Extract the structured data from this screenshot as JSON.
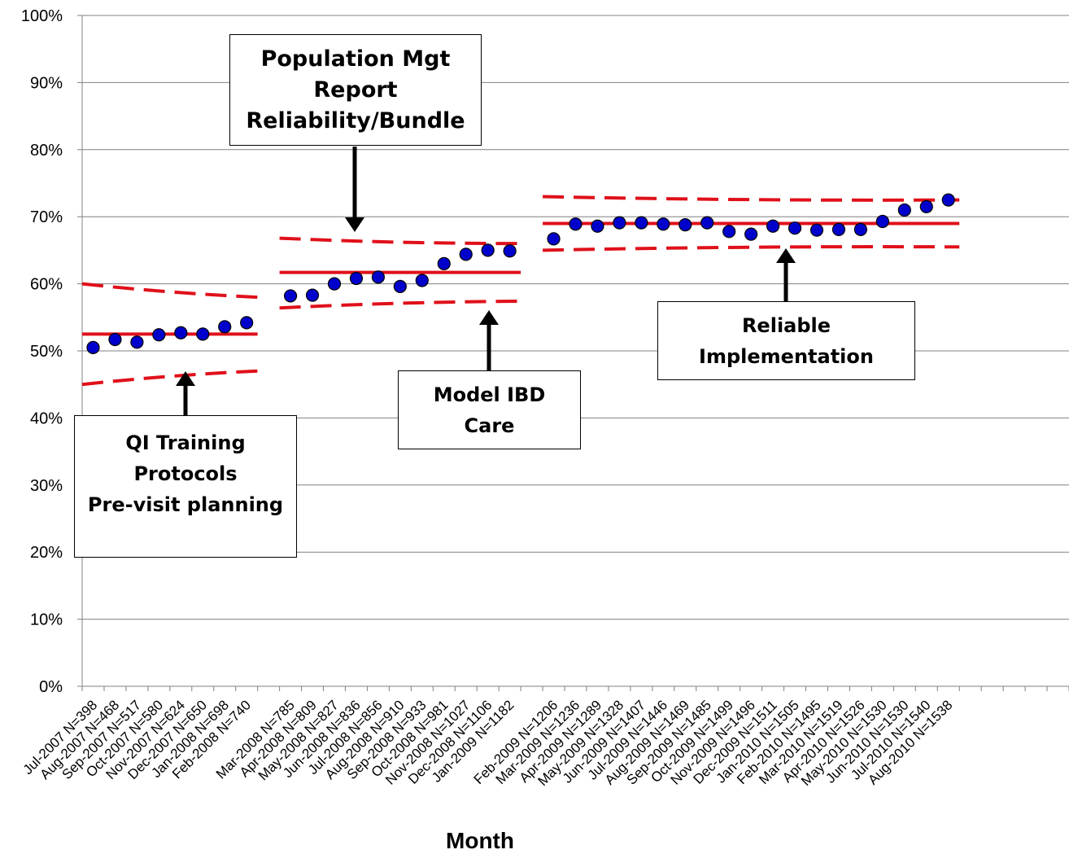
{
  "chart_data": {
    "type": "scatter",
    "xlabel": "Month",
    "ylabel": "",
    "ylim": [
      0,
      100
    ],
    "y_ticks": [
      "0%",
      "10%",
      "20%",
      "30%",
      "40%",
      "50%",
      "60%",
      "70%",
      "80%",
      "90%",
      "100%"
    ],
    "grid": "horizontal",
    "categories": [
      "Jul-2007 N=398",
      "Aug-2007 N=468",
      "Sep-2007 N=517",
      "Oct-2007 N=580",
      "Nov-2007 N=624",
      "Dec-2007 N=650",
      "Jan-2008 N=698",
      "Feb-2008 N=740",
      "",
      "Mar-2008 N=785",
      "Apr-2008 N=809",
      "May-2008 N=827",
      "Jun-2008 N=836",
      "Jul-2008 N=856",
      "Aug-2008 N=910",
      "Sep-2008 N=933",
      "Oct-2008 N=981",
      "Nov-2008 N=1027",
      "Dec-2008 N=1106",
      "Jan-2009 N=1182",
      "",
      "Feb-2009 N=1206",
      "Mar-2009 N=1236",
      "Apr-2009 N=1289",
      "May-2009 N=1328",
      "Jun-2009 N=1407",
      "Jul-2009 N=1446",
      "Aug-2009 N=1469",
      "Sep-2009 N=1485",
      "Oct-2009 N=1499",
      "Nov-2009 N=1496",
      "Dec-2009 N=1511",
      "Jan-2010 N=1505",
      "Feb-2010 N=1495",
      "Mar-2010 N=1519",
      "Apr-2010 N=1526",
      "May-2010 N=1530",
      "Jun-2010 N=1530",
      "Jul-2010 N=1540",
      "Aug-2010 N=1538",
      "",
      "",
      "",
      "",
      ""
    ],
    "series": [
      {
        "values": [
          50.5,
          51.7,
          51.3,
          52.4,
          52.7,
          52.5,
          53.6,
          54.2,
          null,
          58.2,
          58.3,
          60.0,
          60.8,
          61.0,
          59.6,
          60.5,
          63.0,
          64.4,
          65.0,
          64.9,
          null,
          66.7,
          68.9,
          68.6,
          69.1,
          69.1,
          68.9,
          68.8,
          69.1,
          67.8,
          67.4,
          68.6,
          68.3,
          68.0,
          68.1,
          68.1,
          69.3,
          71.0,
          71.5,
          72.5,
          null,
          null,
          null,
          null,
          null
        ],
        "color": "#0000cc"
      }
    ],
    "control_limits": [
      {
        "start": 0,
        "end": 7,
        "center": 52.5,
        "upper": [
          60.0,
          58.0
        ],
        "lower": [
          45.0,
          47.0
        ]
      },
      {
        "start": 9,
        "end": 19,
        "center": 61.7,
        "upper": [
          66.8,
          66.0
        ],
        "lower": [
          56.4,
          57.4
        ]
      },
      {
        "start": 21,
        "end": 39,
        "center": 69.0,
        "upper": [
          73.0,
          72.5
        ],
        "lower": [
          65.0,
          65.5
        ]
      }
    ],
    "control_color": "#e0101a"
  },
  "annotations": [
    {
      "lines": [
        "QI Training",
        "Protocols",
        "Pre-visit planning"
      ]
    },
    {
      "lines": [
        "Population Mgt",
        "Report",
        "Reliability/Bundle"
      ]
    },
    {
      "lines": [
        "Model IBD",
        "Care"
      ]
    },
    {
      "lines": [
        "Reliable",
        "Implementation"
      ]
    }
  ]
}
